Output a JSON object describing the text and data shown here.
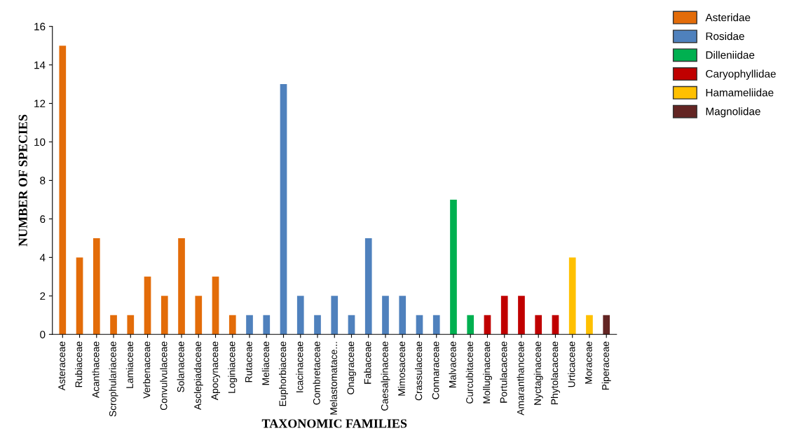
{
  "chart_data": {
    "type": "bar",
    "xlabel": "TAXONOMIC FAMILIES",
    "ylabel": "NUMBER OF SPECIES",
    "categories": [
      "Asteraceae",
      "Rubiaceae",
      "Acanthaceae",
      "Scrophulariaceae",
      "Lamiaceae",
      "Verbenaceae",
      "Convulvulaceae",
      "Solanaceae",
      "Asclepiadaceae",
      "Apocynaceae",
      "Loginiaceae",
      "Rutaceae",
      "Meliaceae",
      "Euphorbiaceae",
      "Icacinaceae",
      "Combretaceae",
      "Melastomatace...",
      "Onagraceae",
      "Fabaceae",
      "Caesalpinaceae",
      "Mimosaceae",
      "Crassulaceae",
      "Connaraceae",
      "Malvaceae",
      "Curcubitaceae",
      "Molluginaceae",
      "Portulacaceae",
      "Amaranthanceae",
      "Nyctaginaceae",
      "Phytolacaceae",
      "Urticaceae",
      "Moraceae",
      "Piperaceae"
    ],
    "series": [
      {
        "name": "Asteridae",
        "color": "#e36c09",
        "values": [
          15,
          4,
          5,
          1,
          1,
          3,
          2,
          5,
          2,
          3,
          1,
          null,
          null,
          null,
          null,
          null,
          null,
          null,
          null,
          null,
          null,
          null,
          null,
          null,
          null,
          null,
          null,
          null,
          null,
          null,
          null,
          null,
          null
        ]
      },
      {
        "name": "Rosidae",
        "color": "#4f81bd",
        "values": [
          null,
          null,
          null,
          null,
          null,
          null,
          null,
          null,
          null,
          null,
          null,
          1,
          1,
          13,
          2,
          1,
          2,
          1,
          5,
          2,
          2,
          1,
          1,
          null,
          null,
          null,
          null,
          null,
          null,
          null,
          null,
          null,
          null
        ]
      },
      {
        "name": "Dilleniidae",
        "color": "#00b050",
        "values": [
          null,
          null,
          null,
          null,
          null,
          null,
          null,
          null,
          null,
          null,
          null,
          null,
          null,
          null,
          null,
          null,
          null,
          null,
          null,
          null,
          null,
          null,
          null,
          7,
          1,
          null,
          null,
          null,
          null,
          null,
          null,
          null,
          null
        ]
      },
      {
        "name": "Caryophyllidae",
        "color": "#c00000",
        "values": [
          null,
          null,
          null,
          null,
          null,
          null,
          null,
          null,
          null,
          null,
          null,
          null,
          null,
          null,
          null,
          null,
          null,
          null,
          null,
          null,
          null,
          null,
          null,
          null,
          null,
          1,
          2,
          2,
          1,
          1,
          null,
          null,
          null
        ]
      },
      {
        "name": "Hamameliidae",
        "color": "#ffc000",
        "values": [
          null,
          null,
          null,
          null,
          null,
          null,
          null,
          null,
          null,
          null,
          null,
          null,
          null,
          null,
          null,
          null,
          null,
          null,
          null,
          null,
          null,
          null,
          null,
          null,
          null,
          null,
          null,
          null,
          null,
          null,
          4,
          1,
          null
        ]
      },
      {
        "name": "Magnolidae",
        "color": "#632523",
        "values": [
          null,
          null,
          null,
          null,
          null,
          null,
          null,
          null,
          null,
          null,
          null,
          null,
          null,
          null,
          null,
          null,
          null,
          null,
          null,
          null,
          null,
          null,
          null,
          null,
          null,
          null,
          null,
          null,
          null,
          null,
          null,
          null,
          1
        ]
      }
    ],
    "ylim": [
      0,
      16
    ],
    "yticks": [
      0,
      2,
      4,
      6,
      8,
      10,
      12,
      14,
      16
    ],
    "grid": false,
    "legend": "top right"
  }
}
